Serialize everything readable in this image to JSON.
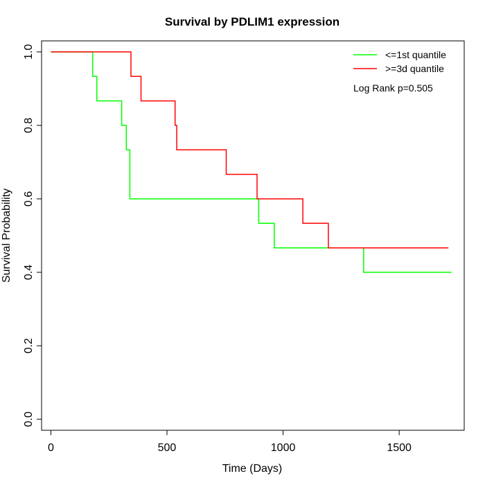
{
  "chart_data": {
    "type": "line",
    "title": "Survival by PDLIM1 expression",
    "xlabel": "Time (Days)",
    "ylabel": "Survival Probability",
    "xlim": [
      -40,
      1780
    ],
    "ylim": [
      -0.03,
      1.03
    ],
    "x_ticks": [
      0,
      500,
      1000,
      1500
    ],
    "y_ticks": [
      0.0,
      0.2,
      0.4,
      0.6,
      0.8,
      1.0
    ],
    "x_tick_labels": [
      "0",
      "500",
      "1000",
      "1500"
    ],
    "y_tick_labels": [
      "0.0",
      "0.2",
      "0.4",
      "0.6",
      "0.8",
      "1.0"
    ],
    "grid": false,
    "legend_position": "top-right",
    "annotation": "Log Rank p=0.505",
    "series": [
      {
        "name": "<=1st quantile",
        "color": "#00ff00",
        "step_points": [
          [
            0,
            1.0
          ],
          [
            180,
            1.0
          ],
          [
            180,
            0.9333
          ],
          [
            198,
            0.9333
          ],
          [
            198,
            0.8667
          ],
          [
            305,
            0.8667
          ],
          [
            305,
            0.8
          ],
          [
            325,
            0.8
          ],
          [
            325,
            0.7333
          ],
          [
            340,
            0.7333
          ],
          [
            340,
            0.6
          ],
          [
            895,
            0.6
          ],
          [
            895,
            0.5333
          ],
          [
            962,
            0.5333
          ],
          [
            962,
            0.4667
          ],
          [
            1347,
            0.4667
          ],
          [
            1347,
            0.4
          ],
          [
            1725,
            0.4
          ]
        ]
      },
      {
        "name": ">=3d quantile",
        "color": "#ff0000",
        "step_points": [
          [
            0,
            1.0
          ],
          [
            345,
            1.0
          ],
          [
            345,
            0.9333
          ],
          [
            388,
            0.9333
          ],
          [
            388,
            0.8667
          ],
          [
            535,
            0.8667
          ],
          [
            535,
            0.8
          ],
          [
            542,
            0.8
          ],
          [
            542,
            0.7333
          ],
          [
            755,
            0.7333
          ],
          [
            755,
            0.6667
          ],
          [
            888,
            0.6667
          ],
          [
            888,
            0.6
          ],
          [
            1085,
            0.6
          ],
          [
            1085,
            0.5333
          ],
          [
            1195,
            0.5333
          ],
          [
            1195,
            0.4667
          ],
          [
            1712,
            0.4667
          ]
        ]
      }
    ]
  }
}
